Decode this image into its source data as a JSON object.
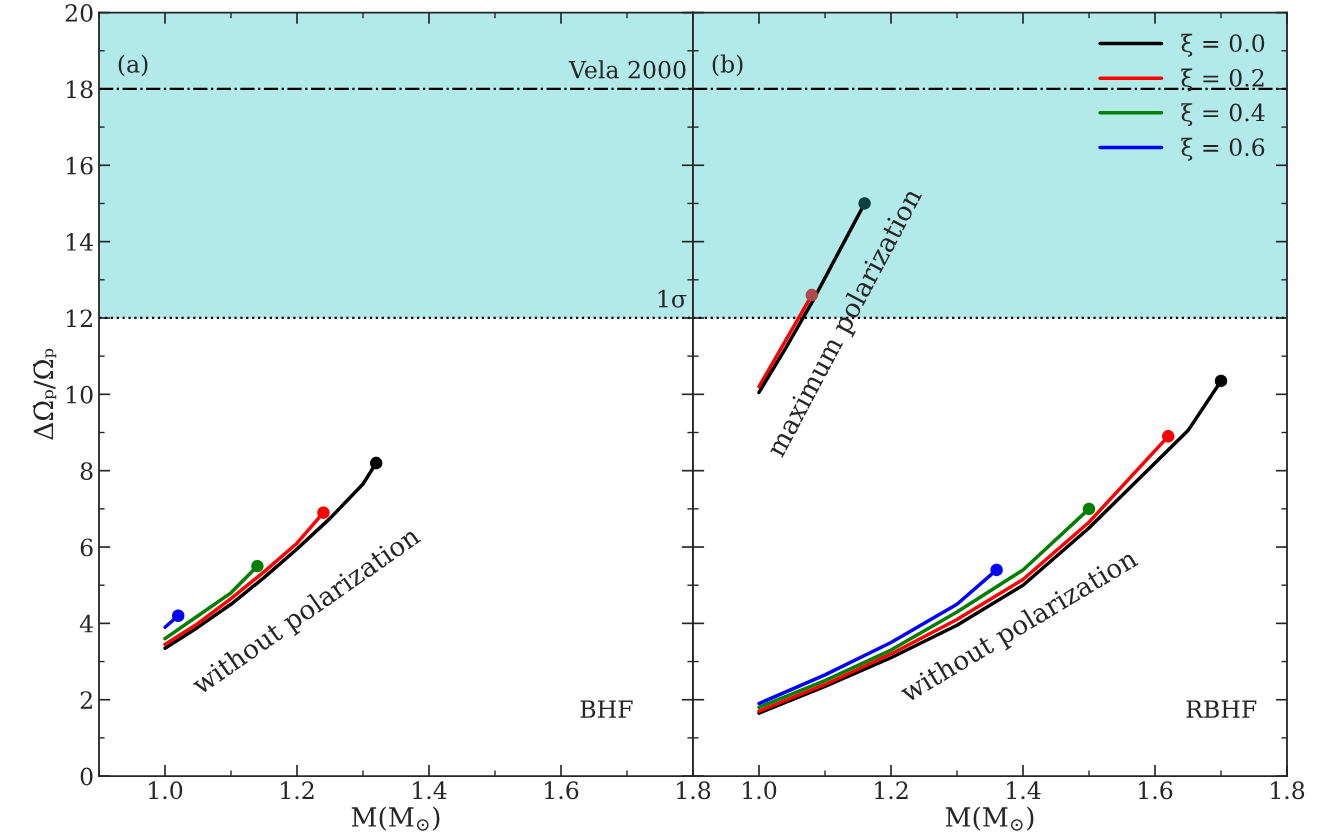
{
  "chart_data": [
    {
      "type": "line",
      "xlabel": "M(M$_{⊙}$)",
      "ylabel": "ΔΩ̇ₚ/Ω̇ₚ",
      "xlim": [
        0.9,
        1.8
      ],
      "xticks": [
        {
          "value": 0.9,
          "label": null
        },
        {
          "value": 1.0,
          "label": "1.0"
        },
        {
          "value": 1.1,
          "label": null
        },
        1.2,
        {
          "value": 1.3,
          "label": null
        },
        1.4,
        {
          "value": 1.5,
          "label": null
        },
        1.6,
        {
          "value": 1.7,
          "label": null
        },
        1.8
      ],
      "ylim": [
        0,
        20
      ],
      "yticks": [
        0,
        {
          "value": 1,
          "label": null
        },
        2,
        {
          "value": 3,
          "label": null
        },
        4,
        {
          "value": 5,
          "label": null
        },
        6,
        {
          "value": 7,
          "label": null
        },
        8,
        {
          "value": 9,
          "label": null
        },
        10,
        {
          "value": 11,
          "label": null
        },
        12,
        {
          "value": 13,
          "label": null
        },
        14,
        {
          "value": 15,
          "label": null
        },
        16,
        {
          "value": 17,
          "label": null
        },
        18,
        {
          "value": 19,
          "label": null
        },
        20
      ],
      "grid": false,
      "legend": false,
      "bands": [
        {
          "axis": "y",
          "from": 12,
          "to": 20,
          "color": "#b2eaea"
        }
      ],
      "ref_lines": [
        {
          "axis": "y",
          "value": 18,
          "label": "Vela 2000",
          "line_style": "dashdot",
          "color": "#000000"
        },
        {
          "axis": "y",
          "value": 12,
          "label": "1σ",
          "line_style": "dotted",
          "color": "#000000"
        }
      ],
      "series": [
        {
          "color": "#000000",
          "x": [
            1.0,
            1.05,
            1.1,
            1.15,
            1.2,
            1.25,
            1.3,
            1.32
          ],
          "values": [
            3.35,
            3.9,
            4.5,
            5.2,
            5.95,
            6.75,
            7.65,
            8.2
          ]
        },
        {
          "color": "#ff0000",
          "x": [
            1.0,
            1.05,
            1.1,
            1.15,
            1.2,
            1.24
          ],
          "values": [
            3.45,
            4.0,
            4.65,
            5.35,
            6.1,
            6.9
          ]
        },
        {
          "color": "#008000",
          "x": [
            1.0,
            1.05,
            1.1,
            1.14
          ],
          "values": [
            3.6,
            4.2,
            4.8,
            5.5
          ]
        },
        {
          "color": "#0000ff",
          "x": [
            1.0,
            1.02
          ],
          "values": [
            3.9,
            4.2
          ]
        },
        {
          "type": "scatter",
          "colors": [
            "#000000",
            "#ff0000",
            "#008000",
            "#0000ff"
          ],
          "x": [
            1.32,
            1.24,
            1.14,
            1.02
          ],
          "values": [
            8.2,
            6.9,
            5.5,
            4.2
          ]
        }
      ],
      "annotations": [
        "(a)",
        "BHF",
        "without polarization"
      ]
    },
    {
      "type": "line",
      "xlabel": "M(M$_{⊙}$)",
      "xlim": [
        0.9,
        1.8
      ],
      "xticks": [
        {
          "value": 0.9,
          "label": null
        },
        {
          "value": 1.0,
          "label": "1.0"
        },
        {
          "value": 1.1,
          "label": null
        },
        1.2,
        {
          "value": 1.3,
          "label": null
        },
        1.4,
        {
          "value": 1.5,
          "label": null
        },
        1.6,
        {
          "value": 1.7,
          "label": null
        },
        1.8
      ],
      "ylim": [
        0,
        20
      ],
      "yticks": [
        0,
        {
          "value": 1,
          "label": null
        },
        2,
        {
          "value": 3,
          "label": null
        },
        4,
        {
          "value": 5,
          "label": null
        },
        6,
        {
          "value": 7,
          "label": null
        },
        8,
        {
          "value": 9,
          "label": null
        },
        10,
        {
          "value": 11,
          "label": null
        },
        12,
        {
          "value": 13,
          "label": null
        },
        14,
        {
          "value": 15,
          "label": null
        },
        16,
        {
          "value": 17,
          "label": null
        },
        18,
        {
          "value": 19,
          "label": null
        },
        20
      ],
      "tick_labels": "x",
      "grid": false,
      "legend": "top right",
      "bands": [
        {
          "axis": "y",
          "from": 12,
          "to": 20,
          "color": "#b2eaea"
        }
      ],
      "ref_lines": [
        {
          "axis": "y",
          "value": 18,
          "line_style": "dashdot",
          "color": "#000000"
        },
        {
          "axis": "y",
          "value": 12,
          "line_style": "dotted",
          "color": "#000000"
        }
      ],
      "series": [
        {
          "name": "ξ = 0.0",
          "color": "#000000",
          "x": [
            1.0,
            1.1,
            1.2,
            1.3,
            1.4,
            1.5,
            1.6,
            1.65,
            1.7
          ],
          "values": [
            1.65,
            2.35,
            3.1,
            3.95,
            5.0,
            6.5,
            8.2,
            9.05,
            10.35
          ]
        },
        {
          "name": "ξ = 0.2",
          "color": "#ff0000",
          "x": [
            1.0,
            1.1,
            1.2,
            1.3,
            1.4,
            1.5,
            1.62
          ],
          "values": [
            1.7,
            2.4,
            3.2,
            4.1,
            5.15,
            6.65,
            8.9
          ]
        },
        {
          "name": "ξ = 0.4",
          "color": "#008000",
          "x": [
            1.0,
            1.1,
            1.2,
            1.3,
            1.4,
            1.5
          ],
          "values": [
            1.8,
            2.5,
            3.3,
            4.3,
            5.4,
            7.0
          ]
        },
        {
          "name": "ξ = 0.6",
          "color": "#0000ff",
          "x": [
            1.0,
            1.1,
            1.2,
            1.3,
            1.36
          ],
          "values": [
            1.9,
            2.65,
            3.5,
            4.5,
            5.4
          ]
        },
        {
          "color": "#ff0000",
          "x": [
            1.0,
            1.04,
            1.08
          ],
          "values": [
            10.2,
            11.4,
            12.6
          ]
        },
        {
          "color": "#000000",
          "x": [
            1.0,
            1.04,
            1.08,
            1.12,
            1.16
          ],
          "values": [
            10.05,
            11.2,
            12.4,
            13.7,
            15.0
          ]
        },
        {
          "type": "scatter",
          "colors": [
            "#000000",
            "#ff0000",
            "#008000",
            "#0000ff",
            "#b04a4a",
            "#0e4040"
          ],
          "x": [
            1.7,
            1.62,
            1.5,
            1.36,
            1.08,
            1.16
          ],
          "values": [
            10.35,
            8.9,
            7.0,
            5.4,
            12.6,
            15.0
          ]
        }
      ],
      "annotations": [
        "(b)",
        "RBHF",
        "maximum polarization",
        "without polarization"
      ]
    }
  ]
}
